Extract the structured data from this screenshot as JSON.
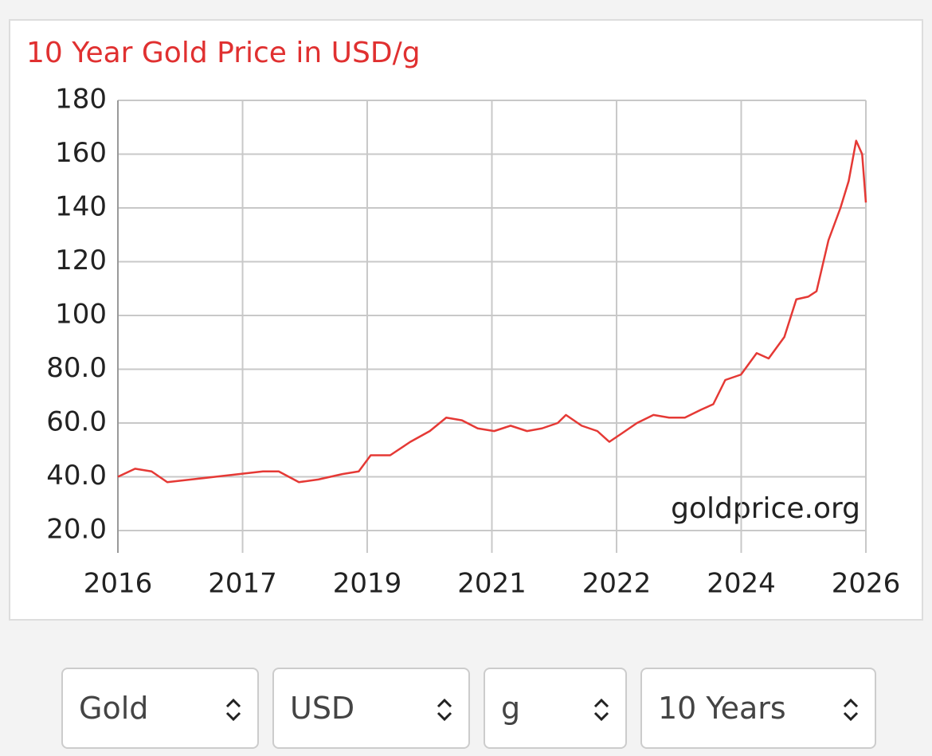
{
  "chart_data": {
    "type": "line",
    "title": "10 Year Gold Price in USD/g",
    "watermark": "goldprice.org",
    "x": [
      2016,
      2016.23,
      2016.45,
      2016.66,
      2016.98,
      2017.3,
      2017.62,
      2017.94,
      2018.15,
      2018.42,
      2018.68,
      2019.0,
      2019.22,
      2019.38,
      2019.64,
      2019.91,
      2020.17,
      2020.39,
      2020.6,
      2020.81,
      2021.03,
      2021.25,
      2021.47,
      2021.67,
      2021.88,
      2021.99,
      2022.2,
      2022.41,
      2022.57,
      2022.73,
      2022.94,
      2023.16,
      2023.37,
      2023.58,
      2023.8,
      2023.96,
      2024.12,
      2024.33,
      2024.54,
      2024.7,
      2024.91,
      2025.07,
      2025.23,
      2025.34,
      2025.5,
      2025.66,
      2025.77,
      2025.87,
      2025.95,
      2026
    ],
    "series": [
      {
        "name": "Gold",
        "color": "#e53935",
        "values": [
          40,
          43,
          42,
          38,
          39,
          40,
          41,
          42,
          42,
          38,
          39,
          41,
          42,
          48,
          48,
          53,
          57,
          62,
          61,
          58,
          57,
          59,
          57,
          58,
          60,
          63,
          59,
          57,
          53,
          56,
          60,
          63,
          62,
          62,
          65,
          67,
          76,
          78,
          86,
          84,
          92,
          106,
          107,
          109,
          128,
          140,
          150,
          165,
          160,
          142
        ]
      }
    ],
    "xlim": [
      2016,
      2026
    ],
    "xticks": [
      2016,
      {
        "value": 2017.667,
        "label": "2017"
      },
      {
        "value": 2019.333,
        "label": "2019"
      },
      2021,
      {
        "value": 2022.667,
        "label": "2022"
      },
      {
        "value": 2024.333,
        "label": "2024"
      },
      2026
    ],
    "ylim": [
      20,
      180
    ],
    "yticks": [
      {
        "value": 20,
        "label": "20.0"
      },
      {
        "value": 40,
        "label": "40.0"
      },
      {
        "value": 60,
        "label": "60.0"
      },
      {
        "value": 80,
        "label": "80.0"
      },
      100,
      120,
      140,
      160,
      180
    ],
    "grid": true
  },
  "controls": [
    "Gold",
    "USD",
    "g",
    "10 Years"
  ]
}
